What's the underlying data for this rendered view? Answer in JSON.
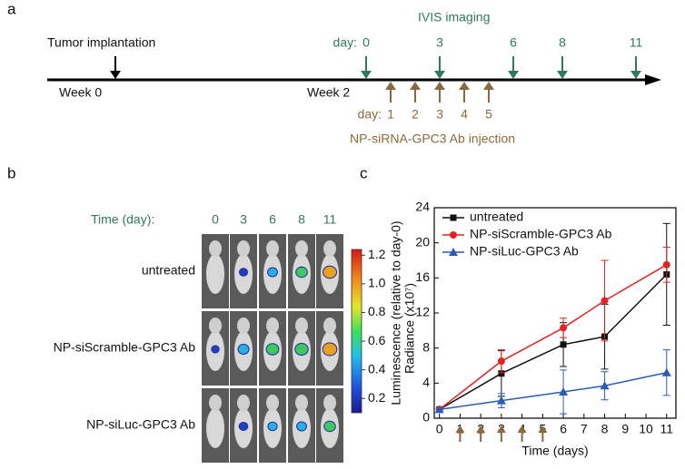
{
  "panel_a": {
    "label": "a",
    "left_text": "Tumor implantation",
    "week_labels": [
      "Week 0",
      "Week 2"
    ],
    "imaging_title": "IVIS imaging",
    "imaging_day_prefix": "day:",
    "imaging_days": [
      0,
      3,
      6,
      8,
      11
    ],
    "injection_day_prefix": "day:",
    "injection_days": [
      1,
      2,
      3,
      4,
      5
    ],
    "injection_title": "NP-siRNA-GPC3 Ab injection"
  },
  "panel_b": {
    "label": "b",
    "time_label": "Time (day):",
    "days": [
      0,
      3,
      6,
      8,
      11
    ],
    "rows": [
      "untreated",
      "NP-siScramble-GPC3 Ab",
      "NP-siLuc-GPC3 Ab"
    ],
    "colorbar": {
      "label": "Radiance (x10⁷)",
      "lim": [
        0.1,
        1.24
      ],
      "ticks": [
        {
          "value": 1.2,
          "label": "1.2"
        },
        {
          "value": 1,
          "label": "1.0"
        },
        {
          "value": 0.8,
          "label": "0.8"
        },
        {
          "value": 0.6,
          "label": "0.6"
        },
        {
          "value": 0.4,
          "label": "0.4"
        },
        {
          "value": 0.2,
          "label": "0.2"
        }
      ]
    }
  },
  "chart_data": {
    "type": "line",
    "panel_label": "c",
    "x_label": "Time (days)",
    "y_label": "Luminescence (relative to day-0)",
    "xlim": [
      -0.25,
      11.45
    ],
    "ylim": [
      0,
      24
    ],
    "xticks": [
      0,
      1,
      2,
      3,
      4,
      5,
      6,
      7,
      8,
      9,
      10,
      11
    ],
    "yticks": [
      0,
      4,
      8,
      12,
      16,
      20,
      24
    ],
    "injection_arrows": [
      1,
      2,
      3,
      4,
      5
    ],
    "legend": "upper left",
    "series": [
      {
        "name": "untreated",
        "color": "#111111",
        "marker": "square",
        "x": [
          0,
          3,
          6,
          8,
          11
        ],
        "values": [
          1,
          5.1,
          8.4,
          9.3,
          16.4
        ],
        "errors": [
          0,
          2.6,
          2.5,
          3.7,
          5.8
        ]
      },
      {
        "name": "NP-siScramble-GPC3 Ab",
        "color": "#e52222",
        "marker": "circle",
        "x": [
          0,
          3,
          6,
          8,
          11
        ],
        "values": [
          1,
          6.5,
          10.3,
          13.4,
          17.5
        ],
        "errors": [
          0,
          1.3,
          1.1,
          4.6,
          2.0
        ]
      },
      {
        "name": "NP-siLuc-GPC3 Ab",
        "color": "#2b5cb8",
        "marker": "triangle",
        "x": [
          0,
          3,
          6,
          8,
          11
        ],
        "values": [
          1,
          2.0,
          3.0,
          3.7,
          5.2
        ],
        "errors": [
          0,
          0.8,
          2.5,
          1.6,
          2.6
        ]
      }
    ]
  }
}
